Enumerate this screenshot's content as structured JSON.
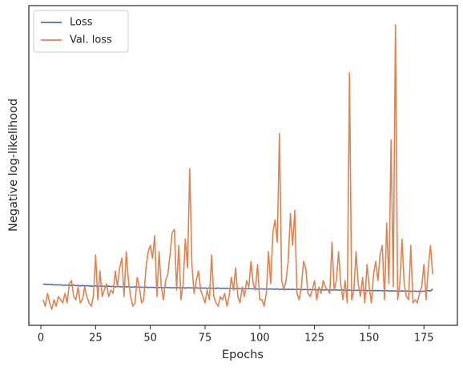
{
  "chart_data": {
    "type": "line",
    "x_label": "Epochs",
    "y_label": "Negative log-likelihood",
    "xlim": [
      -5.5,
      190.3
    ],
    "ylim": [
      0,
      100
    ],
    "xticks": [
      0,
      25,
      50,
      75,
      100,
      125,
      150,
      175
    ],
    "legend": "upper left",
    "x": [
      1,
      2,
      3,
      4,
      5,
      6,
      7,
      8,
      9,
      10,
      11,
      12,
      13,
      14,
      15,
      16,
      17,
      18,
      19,
      20,
      21,
      22,
      23,
      24,
      25,
      26,
      27,
      28,
      29,
      30,
      31,
      32,
      33,
      34,
      35,
      36,
      37,
      38,
      39,
      40,
      41,
      42,
      43,
      44,
      45,
      46,
      47,
      48,
      49,
      50,
      51,
      52,
      53,
      54,
      55,
      56,
      57,
      58,
      59,
      60,
      61,
      62,
      63,
      64,
      65,
      66,
      67,
      68,
      69,
      70,
      71,
      72,
      73,
      74,
      75,
      76,
      77,
      78,
      79,
      80,
      81,
      82,
      83,
      84,
      85,
      86,
      87,
      88,
      89,
      90,
      91,
      92,
      93,
      94,
      95,
      96,
      97,
      98,
      99,
      100,
      101,
      102,
      103,
      104,
      105,
      106,
      107,
      108,
      109,
      110,
      111,
      112,
      113,
      114,
      115,
      116,
      117,
      118,
      119,
      120,
      121,
      122,
      123,
      124,
      125,
      126,
      127,
      128,
      129,
      130,
      131,
      132,
      133,
      134,
      135,
      136,
      137,
      138,
      139,
      140,
      141,
      142,
      143,
      144,
      145,
      146,
      147,
      148,
      149,
      150,
      151,
      152,
      153,
      154,
      155,
      156,
      157,
      158,
      159,
      160,
      161,
      162,
      163,
      164,
      165,
      166,
      167,
      168,
      169,
      170,
      171,
      172,
      173,
      174,
      175,
      176,
      177,
      178,
      179
    ],
    "series": [
      {
        "name": "Loss",
        "color": "#4c72b0",
        "values": [
          12.9,
          12.8,
          12.8,
          12.7,
          12.8,
          12.6,
          12.7,
          12.6,
          12.7,
          12.5,
          12.6,
          12.5,
          12.6,
          12.4,
          12.6,
          12.4,
          12.5,
          12.3,
          12.5,
          12.3,
          12.4,
          12.3,
          12.3,
          12.2,
          12.4,
          12.1,
          12.3,
          12.2,
          12.2,
          12.1,
          12.3,
          12.1,
          12.2,
          12.0,
          12.2,
          12.1,
          12.0,
          12.2,
          12.0,
          12.1,
          12.0,
          11.9,
          12.1,
          11.9,
          12.0,
          11.9,
          11.9,
          12.0,
          11.8,
          11.9,
          11.9,
          11.8,
          11.9,
          11.8,
          11.9,
          11.7,
          11.9,
          11.8,
          11.8,
          11.7,
          11.8,
          11.7,
          11.8,
          11.7,
          11.9,
          11.6,
          11.8,
          11.7,
          11.7,
          11.6,
          11.8,
          11.6,
          11.7,
          11.6,
          11.7,
          11.5,
          11.7,
          11.6,
          11.6,
          11.5,
          11.7,
          11.5,
          11.6,
          11.5,
          11.6,
          11.5,
          11.5,
          11.6,
          11.4,
          11.5,
          11.5,
          11.4,
          11.5,
          11.4,
          11.5,
          11.4,
          11.4,
          11.5,
          11.3,
          11.4,
          11.4,
          11.3,
          11.4,
          11.3,
          11.4,
          11.3,
          11.3,
          11.4,
          11.2,
          11.3,
          11.3,
          11.2,
          11.3,
          11.2,
          11.3,
          11.2,
          11.2,
          11.3,
          11.1,
          11.2,
          11.2,
          11.1,
          11.2,
          11.1,
          11.2,
          11.1,
          11.1,
          11.2,
          11.0,
          11.1,
          11.1,
          11.0,
          11.1,
          11.0,
          11.1,
          11.0,
          11.0,
          11.1,
          10.9,
          11.0,
          11.0,
          10.9,
          11.0,
          10.9,
          11.0,
          10.9,
          10.9,
          11.0,
          10.8,
          10.9,
          10.9,
          10.8,
          10.9,
          10.8,
          10.9,
          10.8,
          10.8,
          10.9,
          10.7,
          10.8,
          10.8,
          10.7,
          10.8,
          10.7,
          10.8,
          10.7,
          10.7,
          10.8,
          10.6,
          10.7,
          10.7,
          10.6,
          10.7,
          10.6,
          10.7,
          10.6,
          10.9,
          10.7,
          11.4
        ]
      },
      {
        "name": "Val. loss",
        "color": "#dd8452",
        "values": [
          8,
          6,
          10,
          7,
          5,
          8,
          6,
          9,
          8,
          7,
          10,
          7,
          13,
          14,
          9,
          8,
          12,
          7,
          8,
          12,
          9,
          7,
          6,
          9,
          22,
          8,
          17,
          9,
          11,
          13,
          9,
          11,
          10,
          17,
          12,
          18,
          21,
          9,
          23,
          14,
          9,
          6,
          7,
          15,
          12,
          7,
          8,
          18,
          23,
          25,
          21,
          28,
          9,
          23,
          12,
          8,
          14,
          16,
          22,
          29,
          30,
          11,
          25,
          8,
          13,
          27,
          18,
          49,
          19,
          10,
          14,
          17,
          11,
          9,
          7,
          11,
          8,
          22,
          9,
          7,
          6,
          9,
          8,
          10,
          6,
          9,
          15,
          11,
          18,
          9,
          7,
          12,
          9,
          14,
          12,
          20,
          13,
          11,
          19,
          8,
          8,
          6,
          10,
          23,
          13,
          29,
          33,
          26,
          60,
          14,
          11,
          14,
          20,
          35,
          25,
          36,
          10,
          8,
          12,
          20,
          18,
          10,
          9,
          11,
          14,
          8,
          12,
          10,
          14,
          12,
          11,
          10,
          26,
          11,
          14,
          23,
          13,
          8,
          14,
          7,
          79,
          8,
          11,
          23,
          13,
          9,
          15,
          7,
          19,
          12,
          7,
          16,
          20,
          14,
          22,
          25,
          8,
          32,
          13,
          58,
          12,
          94,
          8,
          13,
          27,
          13,
          9,
          8,
          25,
          7,
          8,
          7,
          10,
          12,
          19,
          8,
          18,
          25,
          16
        ]
      }
    ]
  }
}
